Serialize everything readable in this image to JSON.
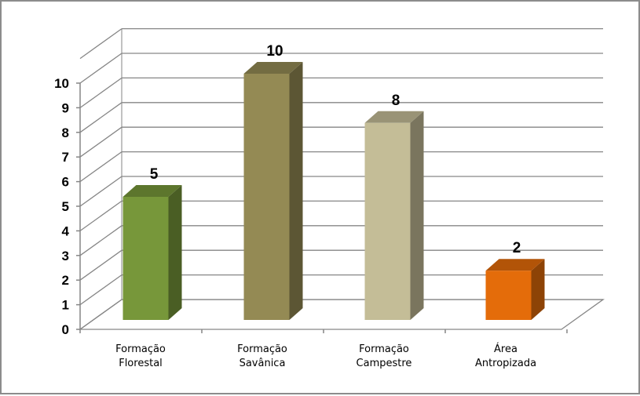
{
  "chart_data": {
    "type": "bar",
    "style": "3d-column",
    "categories": [
      "Formação Florestal",
      "Formação Savânica",
      "Formação Campestre",
      "Área Antropizada"
    ],
    "category_lines": [
      [
        "Formação",
        "Florestal"
      ],
      [
        "Formação",
        "Savânica"
      ],
      [
        "Formação",
        "Campestre"
      ],
      [
        "Área",
        "Antropizada"
      ]
    ],
    "values": [
      5,
      10,
      8,
      2
    ],
    "data_labels": [
      "5",
      "10",
      "8",
      "2"
    ],
    "colors": [
      "#77973a",
      "#948a54",
      "#c4bd97",
      "#e46c0a"
    ],
    "ylim": [
      0,
      10
    ],
    "yticks": [
      "0",
      "1",
      "2",
      "3",
      "4",
      "5",
      "6",
      "7",
      "8",
      "9",
      "10"
    ],
    "title": "",
    "xlabel": "",
    "ylabel": "",
    "grid": true,
    "legend": "none"
  }
}
